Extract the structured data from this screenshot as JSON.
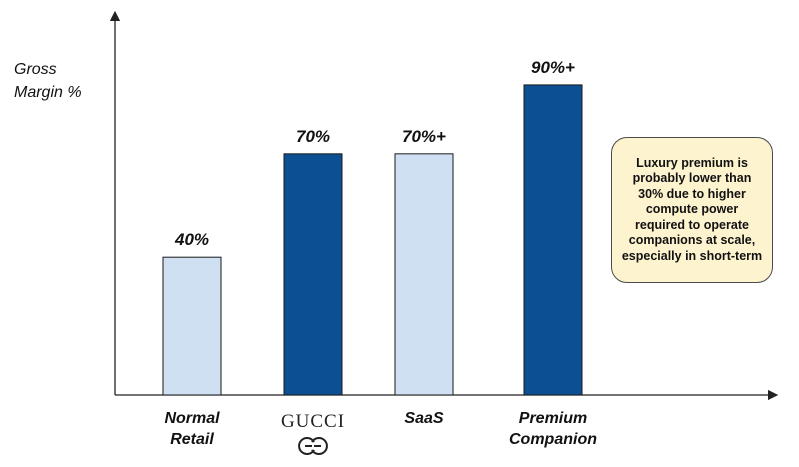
{
  "chart_data": {
    "type": "bar",
    "title": "",
    "xlabel": "",
    "ylabel_lines": [
      "Gross",
      "Margin %"
    ],
    "ylim": [
      0,
      110
    ],
    "grid": false,
    "categories": [
      "Normal Retail",
      "GUCCI",
      "SaaS",
      "Premium Companion"
    ],
    "category_label_lines": [
      [
        "Normal",
        "Retail"
      ],
      [
        "GUCCI"
      ],
      [
        "SaaS"
      ],
      [
        "Premium",
        "Companion"
      ]
    ],
    "values": [
      40,
      70,
      70,
      90
    ],
    "data_labels": [
      "40%",
      "70%",
      "70%+",
      "90%+"
    ],
    "bar_colors": [
      "#cfe0f3",
      "#0d4f93",
      "#cfe0f3",
      "#0d4f93"
    ],
    "annotation": "Luxury premium is probably lower than 30% due to higher compute power required to operate companions at scale, especially in short-term"
  },
  "colors": {
    "light_bar": "#cfe0f3",
    "dark_bar": "#0d4f93",
    "bar_outline": "#1a1a1a",
    "axis": "#222222",
    "note_fill": "#fdf3cf"
  },
  "logo_text": "GUCCI",
  "logo_icon": "gucci-interlocking-g-icon"
}
